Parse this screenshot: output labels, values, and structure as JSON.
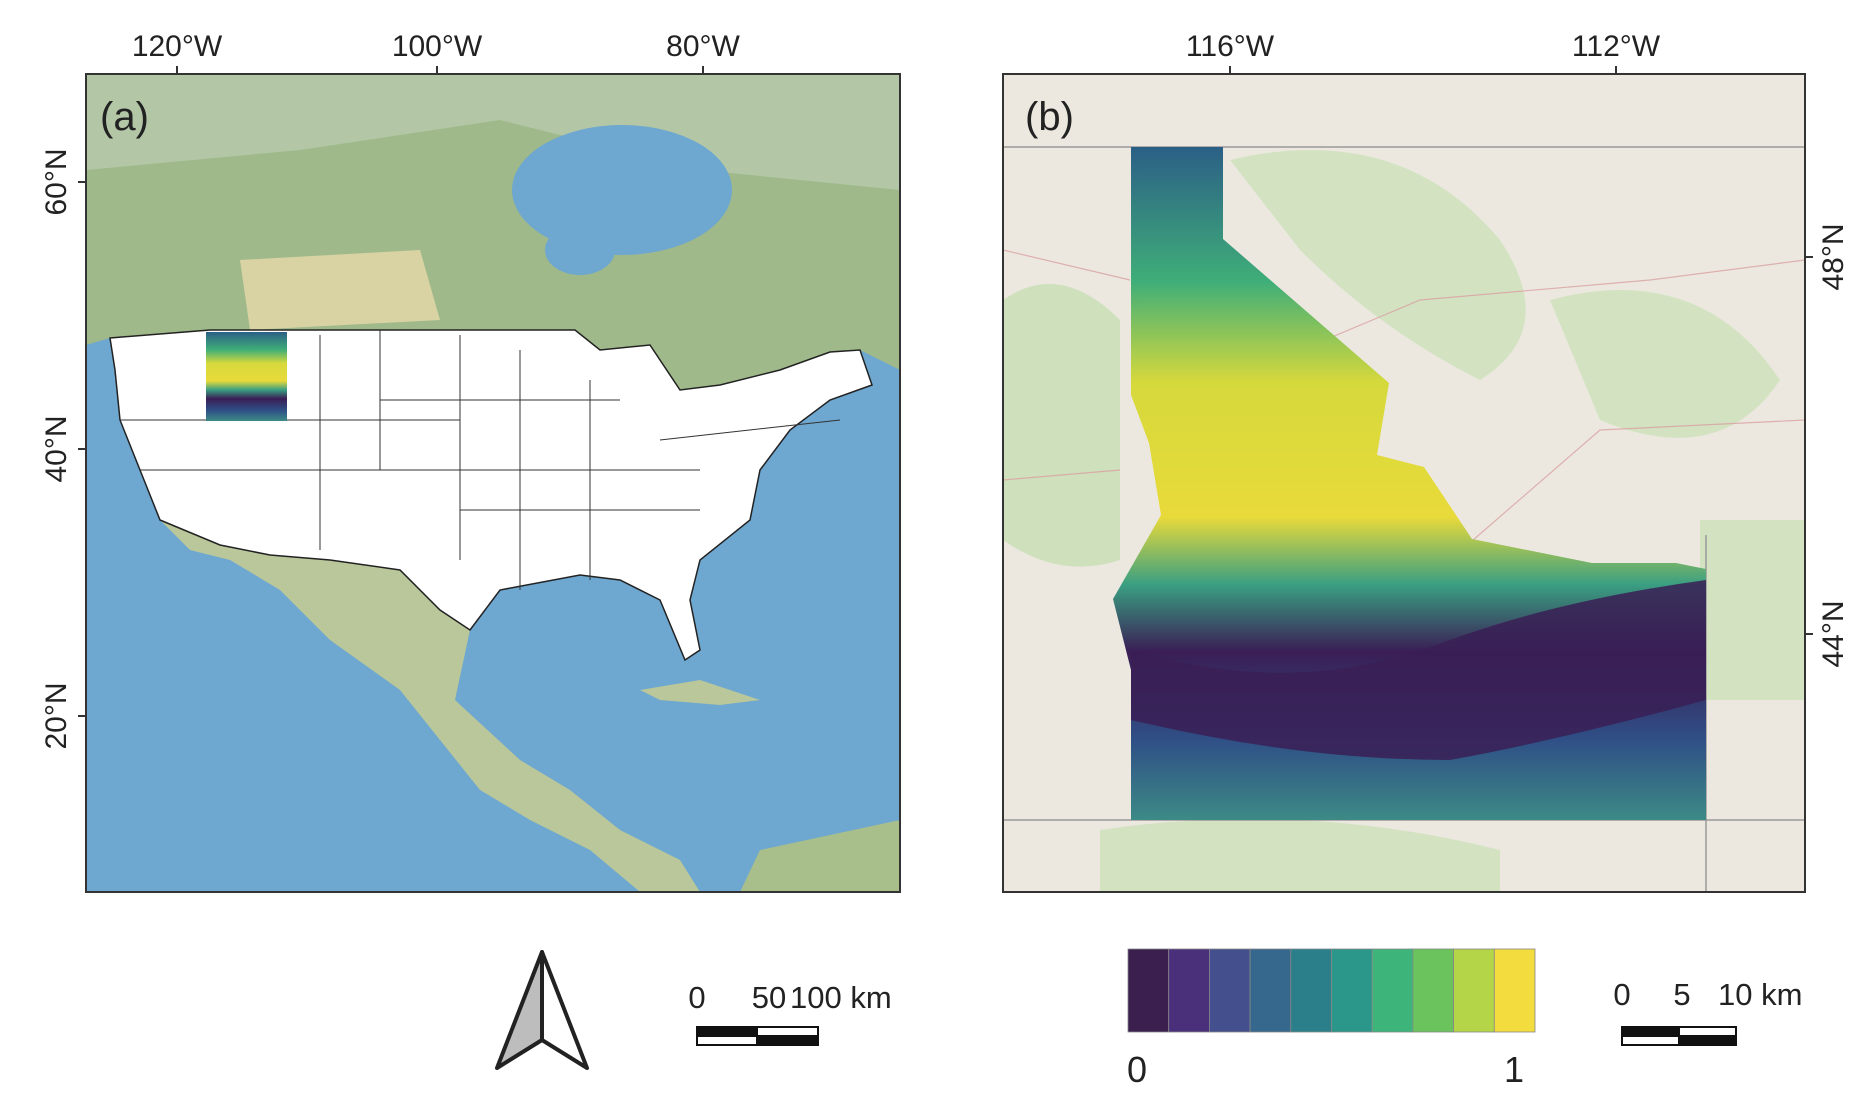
{
  "panels": [
    {
      "label": "(a)",
      "x_ticks": [
        "120°W",
        "100°W",
        "80°W"
      ],
      "y_ticks": [
        "60°N",
        "40°N",
        "20°N"
      ]
    },
    {
      "label": "(b)",
      "x_ticks": [
        "116°W",
        "112°W"
      ],
      "y_ticks": [
        "48°N",
        "44°N"
      ]
    }
  ],
  "scale_bars": [
    {
      "labels": [
        "0",
        "50",
        "100 km"
      ]
    },
    {
      "labels": [
        "0",
        "5",
        "10 km"
      ]
    }
  ],
  "legend": {
    "colors": [
      "#3b1f4f",
      "#4a2f7a",
      "#44508e",
      "#35688c",
      "#2a7f8a",
      "#2a978a",
      "#3db57a",
      "#6ac35c",
      "#b4d548",
      "#f2dc3e"
    ],
    "min_label": "0",
    "max_label": "1"
  }
}
